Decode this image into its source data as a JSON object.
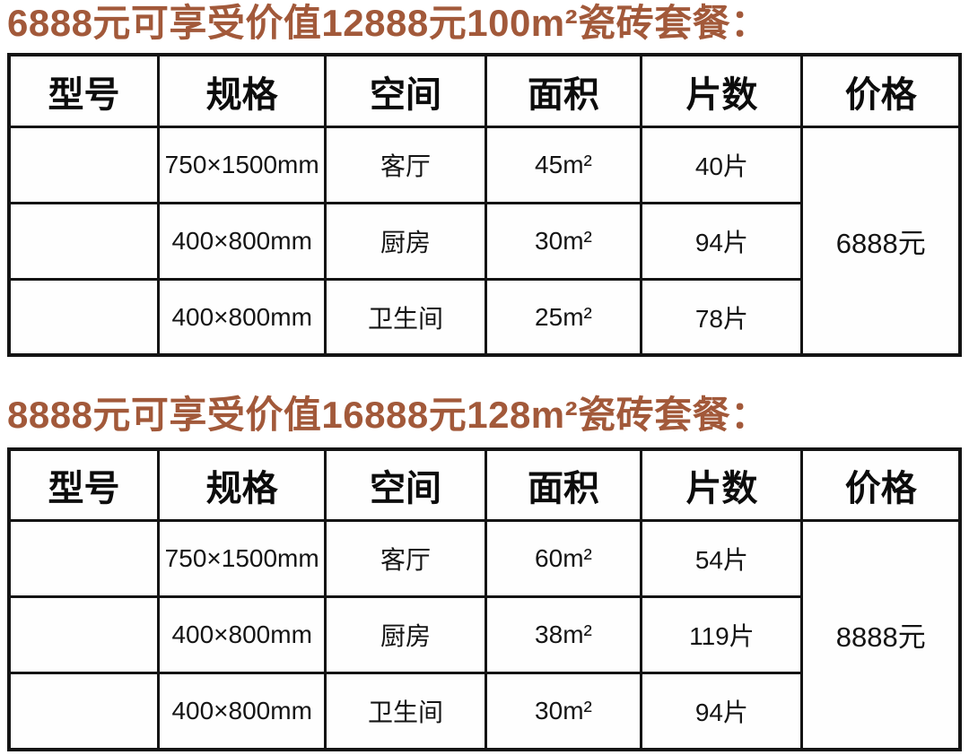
{
  "theme": {
    "title_color": "#a2593a",
    "border_color": "#141414",
    "background": "#ffffff"
  },
  "sections": [
    {
      "title": "6888元可享受价值12888元100m²瓷砖套餐：",
      "table": {
        "headers": [
          "型号",
          "规格",
          "空间",
          "面积",
          "片数",
          "价格"
        ],
        "rows": [
          {
            "model": "",
            "spec": "750×1500mm",
            "space": "客厅",
            "area": "45m²",
            "pieces": "40片"
          },
          {
            "model": "",
            "spec": "400×800mm",
            "space": "厨房",
            "area": "30m²",
            "pieces": "94片"
          },
          {
            "model": "",
            "spec": "400×800mm",
            "space": "卫生间",
            "area": "25m²",
            "pieces": "78片"
          }
        ],
        "price": "6888元"
      }
    },
    {
      "title": "8888元可享受价值16888元128m²瓷砖套餐：",
      "table": {
        "headers": [
          "型号",
          "规格",
          "空间",
          "面积",
          "片数",
          "价格"
        ],
        "rows": [
          {
            "model": "",
            "spec": "750×1500mm",
            "space": "客厅",
            "area": "60m²",
            "pieces": "54片"
          },
          {
            "model": "",
            "spec": "400×800mm",
            "space": "厨房",
            "area": "38m²",
            "pieces": "119片"
          },
          {
            "model": "",
            "spec": "400×800mm",
            "space": "卫生间",
            "area": "30m²",
            "pieces": "94片"
          }
        ],
        "price": "8888元"
      }
    }
  ]
}
